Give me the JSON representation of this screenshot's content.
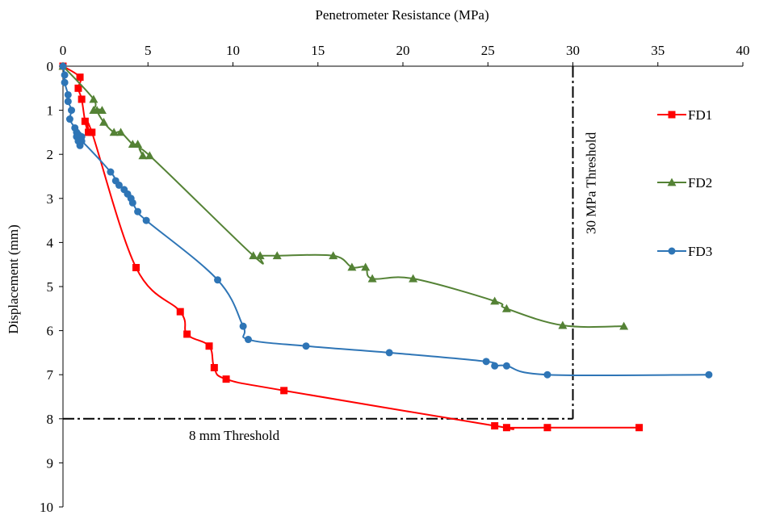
{
  "chart_data": {
    "type": "line",
    "title": "",
    "xlabel": "Penetrometer Resistance (MPa)",
    "ylabel": "Displacement (mm)",
    "xlim": [
      0,
      40
    ],
    "ylim": [
      0,
      10
    ],
    "x_ticks": [
      0,
      5,
      10,
      15,
      20,
      25,
      30,
      35,
      40
    ],
    "y_ticks": [
      0,
      1,
      2,
      3,
      4,
      5,
      6,
      7,
      8,
      9,
      10
    ],
    "x_axis_position": "top",
    "y_axis_inverted": true,
    "grid": false,
    "legend_position": "right",
    "series": [
      {
        "name": "FD1",
        "color": "#ff0000",
        "marker": "square",
        "x": [
          0,
          1.0,
          0.9,
          1.1,
          1.3,
          1.5,
          1.7,
          4.3,
          6.9,
          7.3,
          8.6,
          8.9,
          9.6,
          13.0,
          25.4,
          26.1,
          28.5,
          33.9
        ],
        "y": [
          0,
          0.25,
          0.5,
          0.75,
          1.25,
          1.5,
          1.5,
          4.57,
          5.57,
          6.08,
          6.35,
          6.84,
          7.1,
          7.36,
          8.16,
          8.2,
          8.2,
          8.2
        ]
      },
      {
        "name": "FD2",
        "color": "#548235",
        "marker": "triangle",
        "x": [
          0,
          1.8,
          1.8,
          2.3,
          2.0,
          2.4,
          3.0,
          3.4,
          4.1,
          4.4,
          4.7,
          5.1,
          11.2,
          11.6,
          12.6,
          15.9,
          17.0,
          17.8,
          18.2,
          20.6,
          25.4,
          26.1,
          29.4,
          33.0
        ],
        "y": [
          0,
          0.75,
          1.0,
          1.0,
          1.0,
          1.27,
          1.5,
          1.5,
          1.77,
          1.77,
          2.03,
          2.03,
          4.3,
          4.3,
          4.3,
          4.3,
          4.56,
          4.56,
          4.82,
          4.82,
          5.33,
          5.5,
          5.88,
          5.9
        ]
      },
      {
        "name": "FD3",
        "color": "#2e75b6",
        "marker": "circle",
        "x": [
          0,
          0.1,
          0.1,
          0.3,
          0.3,
          0.5,
          0.4,
          0.7,
          0.8,
          0.9,
          1.1,
          1.0,
          0.8,
          0.9,
          1.0,
          1.1,
          2.8,
          3.1,
          3.3,
          3.6,
          3.8,
          4.0,
          4.1,
          4.4,
          4.9,
          9.1,
          10.6,
          10.9,
          14.3,
          19.2,
          24.9,
          25.4,
          26.1,
          28.5,
          38.0
        ],
        "y": [
          0,
          0.2,
          0.37,
          0.65,
          0.8,
          1.0,
          1.2,
          1.4,
          1.5,
          1.55,
          1.6,
          1.65,
          1.6,
          1.7,
          1.8,
          1.7,
          2.4,
          2.6,
          2.7,
          2.8,
          2.9,
          3.0,
          3.1,
          3.3,
          3.5,
          4.85,
          5.9,
          6.2,
          6.35,
          6.5,
          6.7,
          6.8,
          6.8,
          7.0,
          7.0
        ]
      }
    ],
    "thresholds": [
      {
        "orientation": "vertical",
        "value": 30,
        "label": "30 MPa Threshold"
      },
      {
        "orientation": "horizontal",
        "value": 8,
        "label": "8 mm Threshold"
      }
    ]
  }
}
